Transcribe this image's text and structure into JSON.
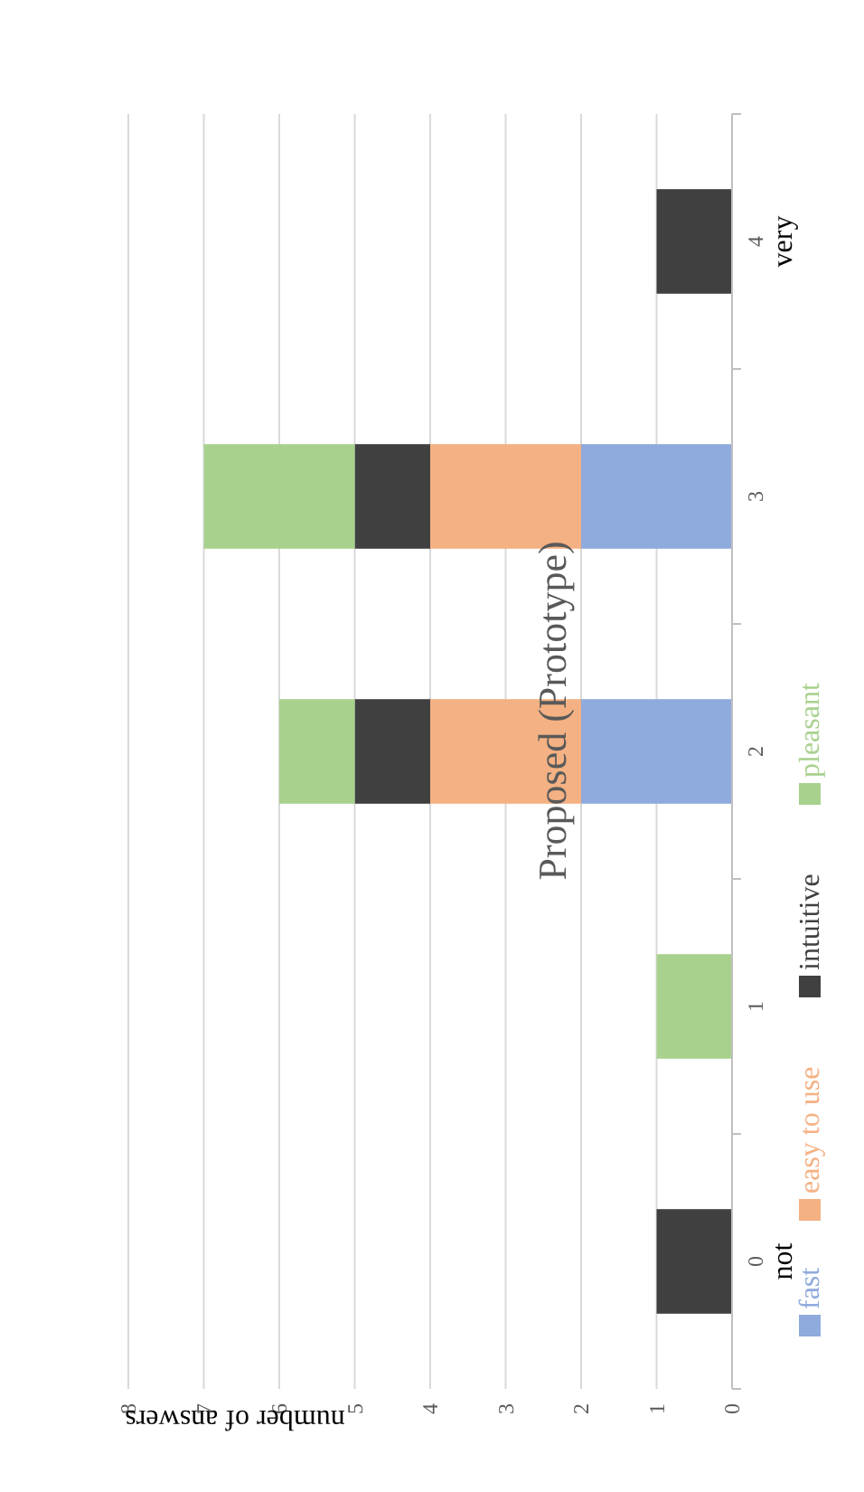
{
  "chart_data": {
    "type": "bar",
    "orientation": "horizontal",
    "title": "Proposed (Prototype)",
    "xlabel": "number of answers",
    "categories": [
      "4\nvery",
      "3",
      "2",
      "1",
      "0\nnot"
    ],
    "series": [
      {
        "name": "fast",
        "color": "#8faadc",
        "values": [
          0,
          2,
          2,
          0,
          0
        ]
      },
      {
        "name": "easy to use",
        "color": "#f4b183",
        "values": [
          0,
          2,
          2,
          0,
          0
        ]
      },
      {
        "name": "intuitive",
        "color": "#404040",
        "values": [
          1,
          1,
          1,
          0,
          1
        ]
      },
      {
        "name": "pleasant",
        "color": "#a9d18e",
        "values": [
          0,
          2,
          1,
          1,
          0
        ]
      }
    ],
    "stacked": true,
    "xlim": [
      8,
      0
    ],
    "xticks": [
      8,
      7,
      6,
      5,
      4,
      3,
      2,
      1,
      0
    ],
    "grid": "x",
    "legend": "right"
  }
}
